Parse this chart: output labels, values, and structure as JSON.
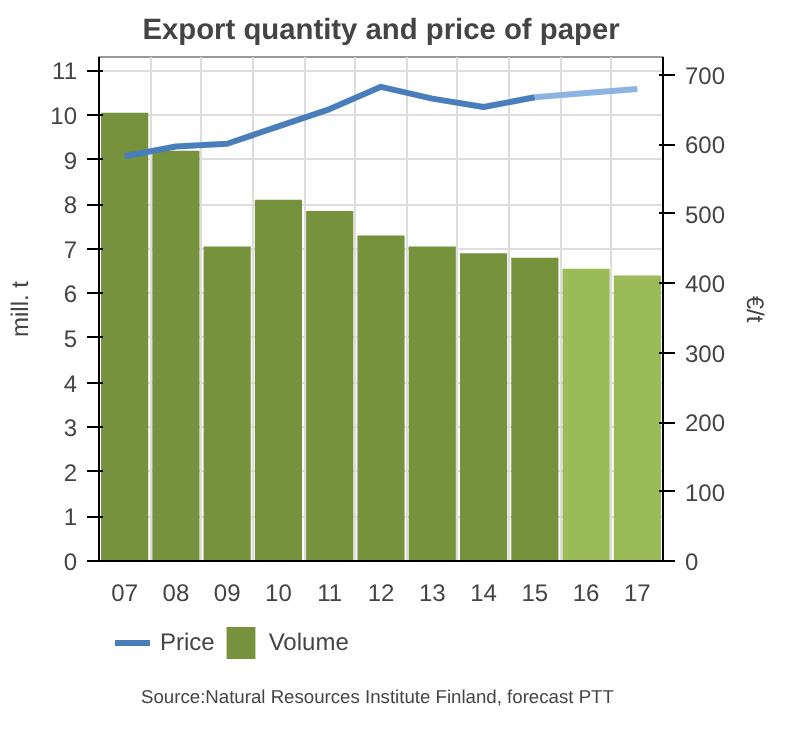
{
  "chart_data": {
    "type": "bar",
    "title": "Export quantity and price of paper",
    "categories": [
      "07",
      "08",
      "09",
      "10",
      "11",
      "12",
      "13",
      "14",
      "15",
      "16",
      "17"
    ],
    "series": [
      {
        "name": "Volume",
        "type": "bar",
        "color": "#76923c",
        "colors": [
          "#76923c",
          "#76923c",
          "#76923c",
          "#76923c",
          "#76923c",
          "#76923c",
          "#76923c",
          "#76923c",
          "#76923c",
          "#9bbb59",
          "#9bbb59"
        ],
        "values": [
          10.05,
          9.2,
          7.05,
          8.1,
          7.85,
          7.3,
          7.05,
          6.9,
          6.8,
          6.55,
          6.4
        ]
      },
      {
        "name": "Price",
        "type": "line",
        "axis": "y2",
        "color": "#4a7ebb",
        "values": [
          583,
          597,
          601,
          626,
          651,
          683,
          666,
          654,
          668,
          null,
          null
        ]
      },
      {
        "type": "line",
        "axis": "y2",
        "color": "#8db3e2",
        "values": [
          null,
          null,
          null,
          null,
          null,
          null,
          null,
          null,
          668,
          674,
          680
        ]
      }
    ],
    "ylabel": "mill. t",
    "y2label": "€/t",
    "ylim": [
      0,
      11.3
    ],
    "yticks": [
      0,
      1,
      2,
      3,
      4,
      5,
      6,
      7,
      8,
      9,
      10,
      11
    ],
    "y2lim": [
      0,
      726
    ],
    "y2ticks": [
      0,
      100,
      200,
      300,
      400,
      500,
      600,
      700
    ],
    "grid": true,
    "legend": "bottom left",
    "annotations": [
      "Source:Natural Resources Institute Finland, forecast PTT"
    ]
  }
}
